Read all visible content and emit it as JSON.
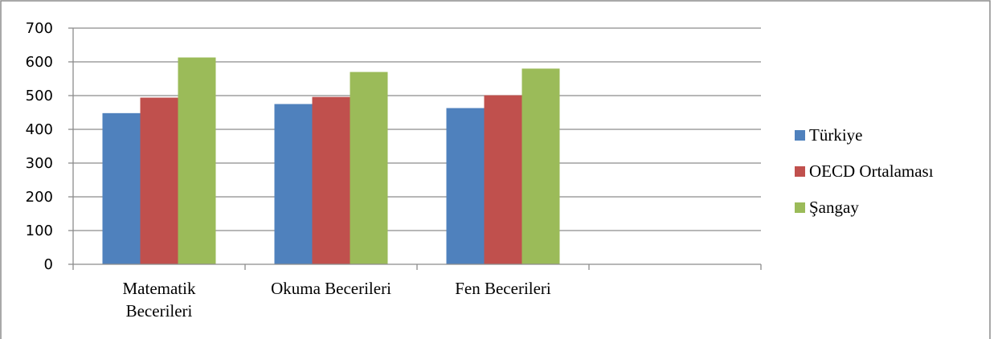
{
  "chart_data": {
    "type": "bar",
    "title": "",
    "xlabel": "",
    "ylabel": "",
    "categories": [
      [
        "Matematik",
        "Becerileri"
      ],
      [
        "Okuma Becerileri"
      ],
      [
        "Fen Becerileri"
      ],
      [
        ""
      ]
    ],
    "series": [
      {
        "name": "Türkiye",
        "color": "#4f81bd",
        "values": [
          448,
          475,
          463,
          null
        ]
      },
      {
        "name": "OECD Ortalaması",
        "color": "#c0504d",
        "values": [
          494,
          496,
          501,
          null
        ]
      },
      {
        "name": "Şangay",
        "color": "#9bbb59",
        "values": [
          613,
          570,
          580,
          null
        ]
      }
    ],
    "ylim": [
      0,
      700
    ],
    "yticks": [
      0,
      100,
      200,
      300,
      400,
      500,
      600,
      700
    ],
    "grid": true,
    "legend_position": "right"
  }
}
